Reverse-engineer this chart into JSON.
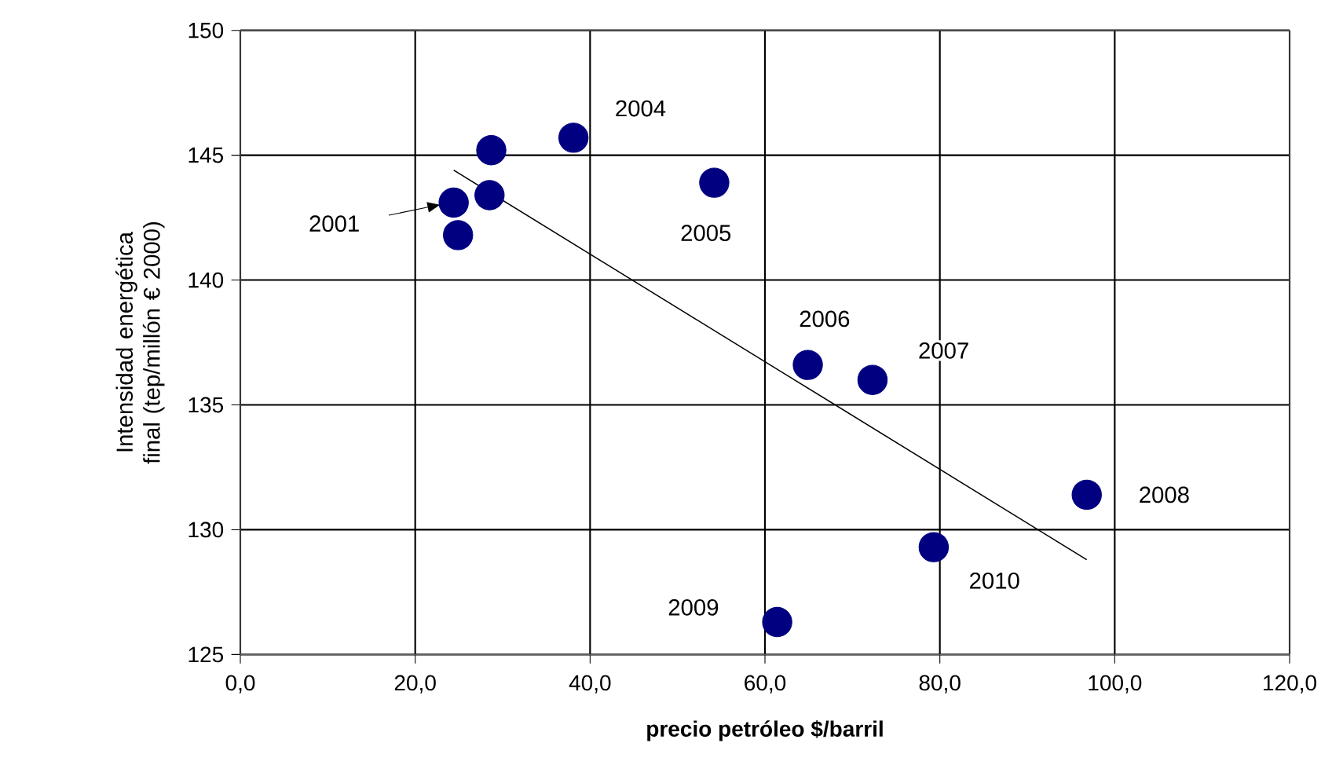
{
  "chart_data": {
    "type": "scatter",
    "xlabel": "precio petróleo $/barril",
    "ylabel": "Intensidad energética final (tep/millón € 2000)",
    "series": [
      {
        "marker": "circle",
        "color": "#000080",
        "x": [
          24.4,
          24.9,
          28.7,
          28.5,
          38.1,
          54.2,
          64.9,
          72.3,
          96.8,
          61.4,
          79.3
        ],
        "values": [
          143.1,
          141.8,
          145.2,
          143.4,
          145.7,
          143.9,
          136.6,
          136.0,
          131.4,
          126.3,
          129.3
        ]
      },
      {
        "type": "line",
        "marker": "none",
        "color": "#000000",
        "x": [
          24.4,
          96.8
        ],
        "values": [
          144.4,
          128.8
        ]
      }
    ],
    "annotations": [
      "2001",
      {
        "text": "2004",
        "x": 38.1,
        "y": 145.7
      },
      {
        "text": "2005",
        "x": 54.2,
        "y": 143.9
      },
      {
        "text": "2006",
        "x": 64.9,
        "y": 136.6
      },
      {
        "text": "2007",
        "x": 72.3,
        "y": 136.0
      },
      {
        "text": "2008",
        "x": 96.8,
        "y": 131.4
      },
      {
        "text": "2009",
        "x": 61.4,
        "y": 126.3
      },
      {
        "text": "2010",
        "x": 79.3,
        "y": 129.3
      }
    ],
    "xlim": [
      0,
      120
    ],
    "xticks": [
      {
        "value": 0,
        "label": "0,0"
      },
      {
        "value": 20,
        "label": "20,0"
      },
      {
        "value": 40,
        "label": "40,0"
      },
      {
        "value": 60,
        "label": "60,0"
      },
      {
        "value": 80,
        "label": "80,0"
      },
      {
        "value": 100,
        "label": "100,0"
      },
      {
        "value": 120,
        "label": "120,0"
      }
    ],
    "ylim": [
      125,
      150
    ],
    "yticks": [
      125,
      130,
      135,
      140,
      145,
      150
    ],
    "grid": true
  }
}
